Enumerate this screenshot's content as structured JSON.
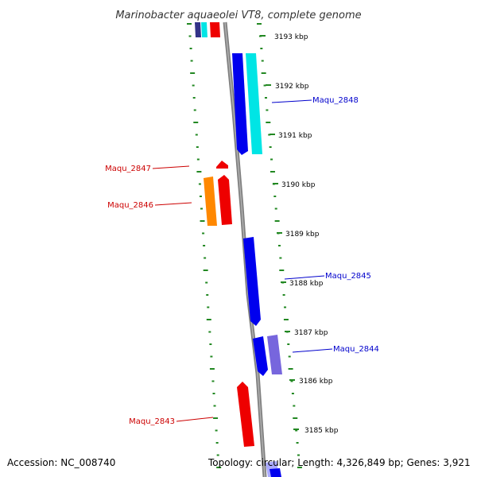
{
  "title": "Marinobacter aquaeolei VT8, complete genome",
  "footer": {
    "accession": "Accession: NC_008740",
    "topology": "Topology: circular; Length: 4,326,849 bp; Genes: 3,921"
  },
  "scale_ticks": [
    {
      "label": "3193 kbp"
    },
    {
      "label": "3192 kbp"
    },
    {
      "label": "3191 kbp"
    },
    {
      "label": "3190 kbp"
    },
    {
      "label": "3189 kbp"
    },
    {
      "label": "3188 kbp"
    },
    {
      "label": "3187 kbp"
    },
    {
      "label": "3186 kbp"
    },
    {
      "label": "3185 kbp"
    }
  ],
  "gene_labels": [
    {
      "name": "Maqu_2848",
      "color": "#0000cc"
    },
    {
      "name": "Maqu_2847",
      "color": "#cc0000"
    },
    {
      "name": "Maqu_2846",
      "color": "#cc0000"
    },
    {
      "name": "Maqu_2845",
      "color": "#0000cc"
    },
    {
      "name": "Maqu_2844",
      "color": "#0000cc"
    },
    {
      "name": "Maqu_2843",
      "color": "#cc0000"
    }
  ],
  "colors": {
    "backbone": "#808080",
    "dotted_ring": "#228822",
    "forward_gene": "#ee0000",
    "reverse_gene": "#0000ee",
    "cyan_gene": "#00e5e5",
    "orange_gene": "#ff8800",
    "purple_gene": "#7766dd",
    "navy_gene": "#333388"
  }
}
